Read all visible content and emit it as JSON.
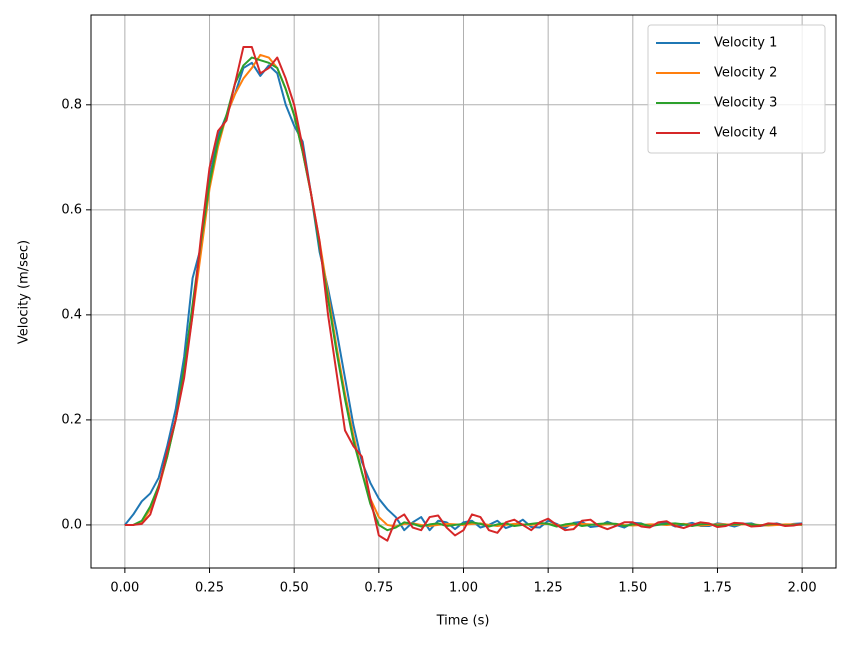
{
  "chart_data": {
    "type": "line",
    "xlabel": "Time (s)",
    "ylabel": "Velocity (m/sec)",
    "x": [
      0,
      0.025,
      0.05,
      0.075,
      0.1,
      0.125,
      0.15,
      0.175,
      0.2,
      0.225,
      0.25,
      0.275,
      0.3,
      0.325,
      0.35,
      0.375,
      0.4,
      0.425,
      0.45,
      0.475,
      0.5,
      0.525,
      0.55,
      0.575,
      0.6,
      0.625,
      0.65,
      0.675,
      0.7,
      0.725,
      0.75,
      0.775,
      0.8,
      0.825,
      0.85,
      0.875,
      0.9,
      0.925,
      0.95,
      0.975,
      1.0,
      1.025,
      1.05,
      1.075,
      1.1,
      1.125,
      1.15,
      1.175,
      1.2,
      1.225,
      1.25,
      1.275,
      1.3,
      1.325,
      1.35,
      1.375,
      1.4,
      1.425,
      1.45,
      1.475,
      1.5,
      1.525,
      1.55,
      1.575,
      1.6,
      1.625,
      1.65,
      1.675,
      1.7,
      1.725,
      1.75,
      1.775,
      1.8,
      1.825,
      1.85,
      1.875,
      1.9,
      1.925,
      1.95,
      1.975,
      2.0
    ],
    "series": [
      {
        "name": "Velocity 1",
        "color": "#1f77b4",
        "values": [
          0,
          0.02,
          0.045,
          0.06,
          0.09,
          0.15,
          0.22,
          0.32,
          0.47,
          0.53,
          0.66,
          0.74,
          0.78,
          0.82,
          0.87,
          0.88,
          0.855,
          0.875,
          0.86,
          0.8,
          0.76,
          0.73,
          0.63,
          0.52,
          0.45,
          0.37,
          0.28,
          0.19,
          0.12,
          0.08,
          0.05,
          0.03,
          0.015,
          -0.01,
          0.005,
          0.015,
          -0.01,
          0.008,
          0.005,
          -0.008,
          0.005,
          0.008,
          -0.005,
          0.0,
          0.008,
          -0.006,
          0.0,
          0.01,
          -0.004,
          -0.005,
          0.008,
          0.002,
          -0.006,
          0.004,
          0.006,
          -0.004,
          -0.002,
          0.006,
          0.0,
          -0.005,
          0.004,
          0.003,
          -0.004,
          0.002,
          0.004,
          -0.003,
          0.0,
          0.004,
          -0.002,
          -0.002,
          0.003,
          0.001,
          -0.003,
          0.002,
          0.003,
          -0.002,
          0.0,
          0.003,
          -0.001,
          0.002,
          0.003
        ]
      },
      {
        "name": "Velocity 2",
        "color": "#ff7f0e",
        "values": [
          0,
          0,
          0.005,
          0.03,
          0.07,
          0.13,
          0.2,
          0.29,
          0.4,
          0.52,
          0.64,
          0.72,
          0.78,
          0.82,
          0.85,
          0.87,
          0.895,
          0.89,
          0.87,
          0.83,
          0.78,
          0.71,
          0.63,
          0.54,
          0.44,
          0.34,
          0.25,
          0.17,
          0.1,
          0.05,
          0.015,
          0,
          -0.003,
          0.002,
          0.003,
          0,
          -0.002,
          0,
          0.002,
          0.001,
          0,
          0.002,
          0.003,
          0,
          -0.002,
          0,
          0.002,
          0.001,
          0,
          0.002,
          0.002,
          0,
          -0.002,
          0,
          0.002,
          0.001,
          0,
          0.001,
          0.002,
          0,
          -0.001,
          0,
          0.001,
          0.001,
          0,
          0.001,
          0.002,
          0,
          -0.001,
          0,
          0.001,
          0.001,
          0,
          0.001,
          0.001,
          0,
          -0.001,
          0,
          0.001,
          0.001,
          0
        ]
      },
      {
        "name": "Velocity 3",
        "color": "#2ca02c",
        "values": [
          0,
          0,
          0.008,
          0.035,
          0.075,
          0.13,
          0.2,
          0.3,
          0.42,
          0.54,
          0.65,
          0.73,
          0.78,
          0.84,
          0.875,
          0.89,
          0.885,
          0.88,
          0.87,
          0.83,
          0.78,
          0.71,
          0.63,
          0.53,
          0.43,
          0.33,
          0.24,
          0.16,
          0.1,
          0.04,
          0.0,
          -0.01,
          -0.005,
          0.005,
          0.002,
          -0.003,
          0.001,
          0.003,
          -0.002,
          0,
          0.002,
          0.005,
          0.002,
          -0.003,
          0.001,
          0.003,
          -0.002,
          0,
          0.002,
          0.004,
          0.002,
          -0.003,
          0.001,
          0.003,
          -0.002,
          0,
          0.002,
          0.003,
          0.002,
          -0.002,
          0.001,
          0.002,
          -0.002,
          0,
          0.002,
          0.003,
          0.001,
          -0.002,
          0.001,
          0.002,
          -0.001,
          0,
          0.001,
          0.002,
          0.001,
          -0.001,
          0.001,
          0.002,
          -0.001,
          0,
          0.001
        ]
      },
      {
        "name": "Velocity 4",
        "color": "#d62728",
        "values": [
          0,
          0,
          0.002,
          0.02,
          0.07,
          0.14,
          0.2,
          0.28,
          0.4,
          0.55,
          0.68,
          0.75,
          0.77,
          0.84,
          0.91,
          0.91,
          0.86,
          0.87,
          0.89,
          0.85,
          0.8,
          0.72,
          0.63,
          0.54,
          0.4,
          0.29,
          0.18,
          0.15,
          0.13,
          0.05,
          -0.02,
          -0.03,
          0.01,
          0.02,
          -0.005,
          -0.01,
          0.015,
          0.018,
          -0.005,
          -0.02,
          -0.01,
          0.02,
          0.015,
          -0.01,
          -0.015,
          0.005,
          0.01,
          0.0,
          -0.01,
          0.005,
          0.012,
          0.0,
          -0.01,
          -0.008,
          0.008,
          0.01,
          -0.002,
          -0.008,
          -0.002,
          0.005,
          0.005,
          -0.003,
          -0.005,
          0.005,
          0.007,
          -0.002,
          -0.006,
          0.0,
          0.005,
          0.003,
          -0.004,
          -0.002,
          0.004,
          0.003,
          -0.003,
          -0.002,
          0.003,
          0.002,
          -0.002,
          -0.001,
          0.002
        ]
      }
    ],
    "xlim": [
      -0.1,
      2.1
    ],
    "xticks": [
      {
        "value": 0,
        "label": "0.00"
      },
      0.25,
      {
        "value": 0.5,
        "label": "0.50"
      },
      0.75,
      {
        "value": 1,
        "label": "1.00"
      },
      1.25,
      {
        "value": 1.5,
        "label": "1.50"
      },
      1.75,
      {
        "value": 2,
        "label": "2.00"
      }
    ],
    "ylim": [
      -0.082,
      0.971
    ],
    "yticks": [
      {
        "value": 0,
        "label": "0.0"
      },
      0.2,
      0.4,
      0.6,
      0.8
    ],
    "grid": true,
    "legend": "upper right"
  }
}
